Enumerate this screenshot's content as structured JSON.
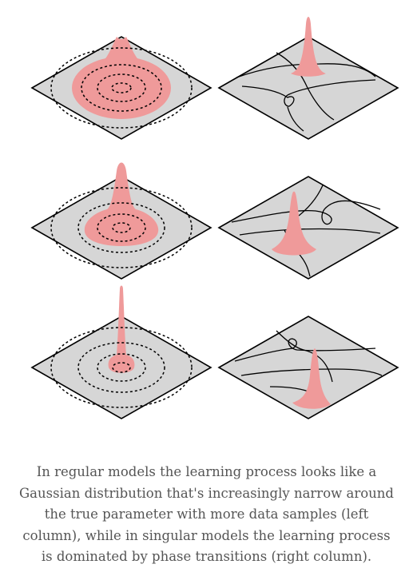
{
  "figure": {
    "rows": [
      {
        "left_distribution": "broad",
        "right_peak": "at-top-intersection"
      },
      {
        "left_distribution": "medium",
        "right_peak": "at-left-loop"
      },
      {
        "left_distribution": "narrow",
        "right_peak": "at-bottom-crossing"
      }
    ],
    "colors": {
      "plane_fill": "#d6d6d6",
      "plane_stroke": "#000000",
      "distribution_fill": "#ef9a9a",
      "contour_stroke": "#000000"
    }
  },
  "caption": {
    "text": "In regular models the learning process looks like a Gaussian distribution that's increasingly narrow around the true parameter with more data samples (left column), while in singular models the learning process is dominated by phase transitions (right column)."
  }
}
